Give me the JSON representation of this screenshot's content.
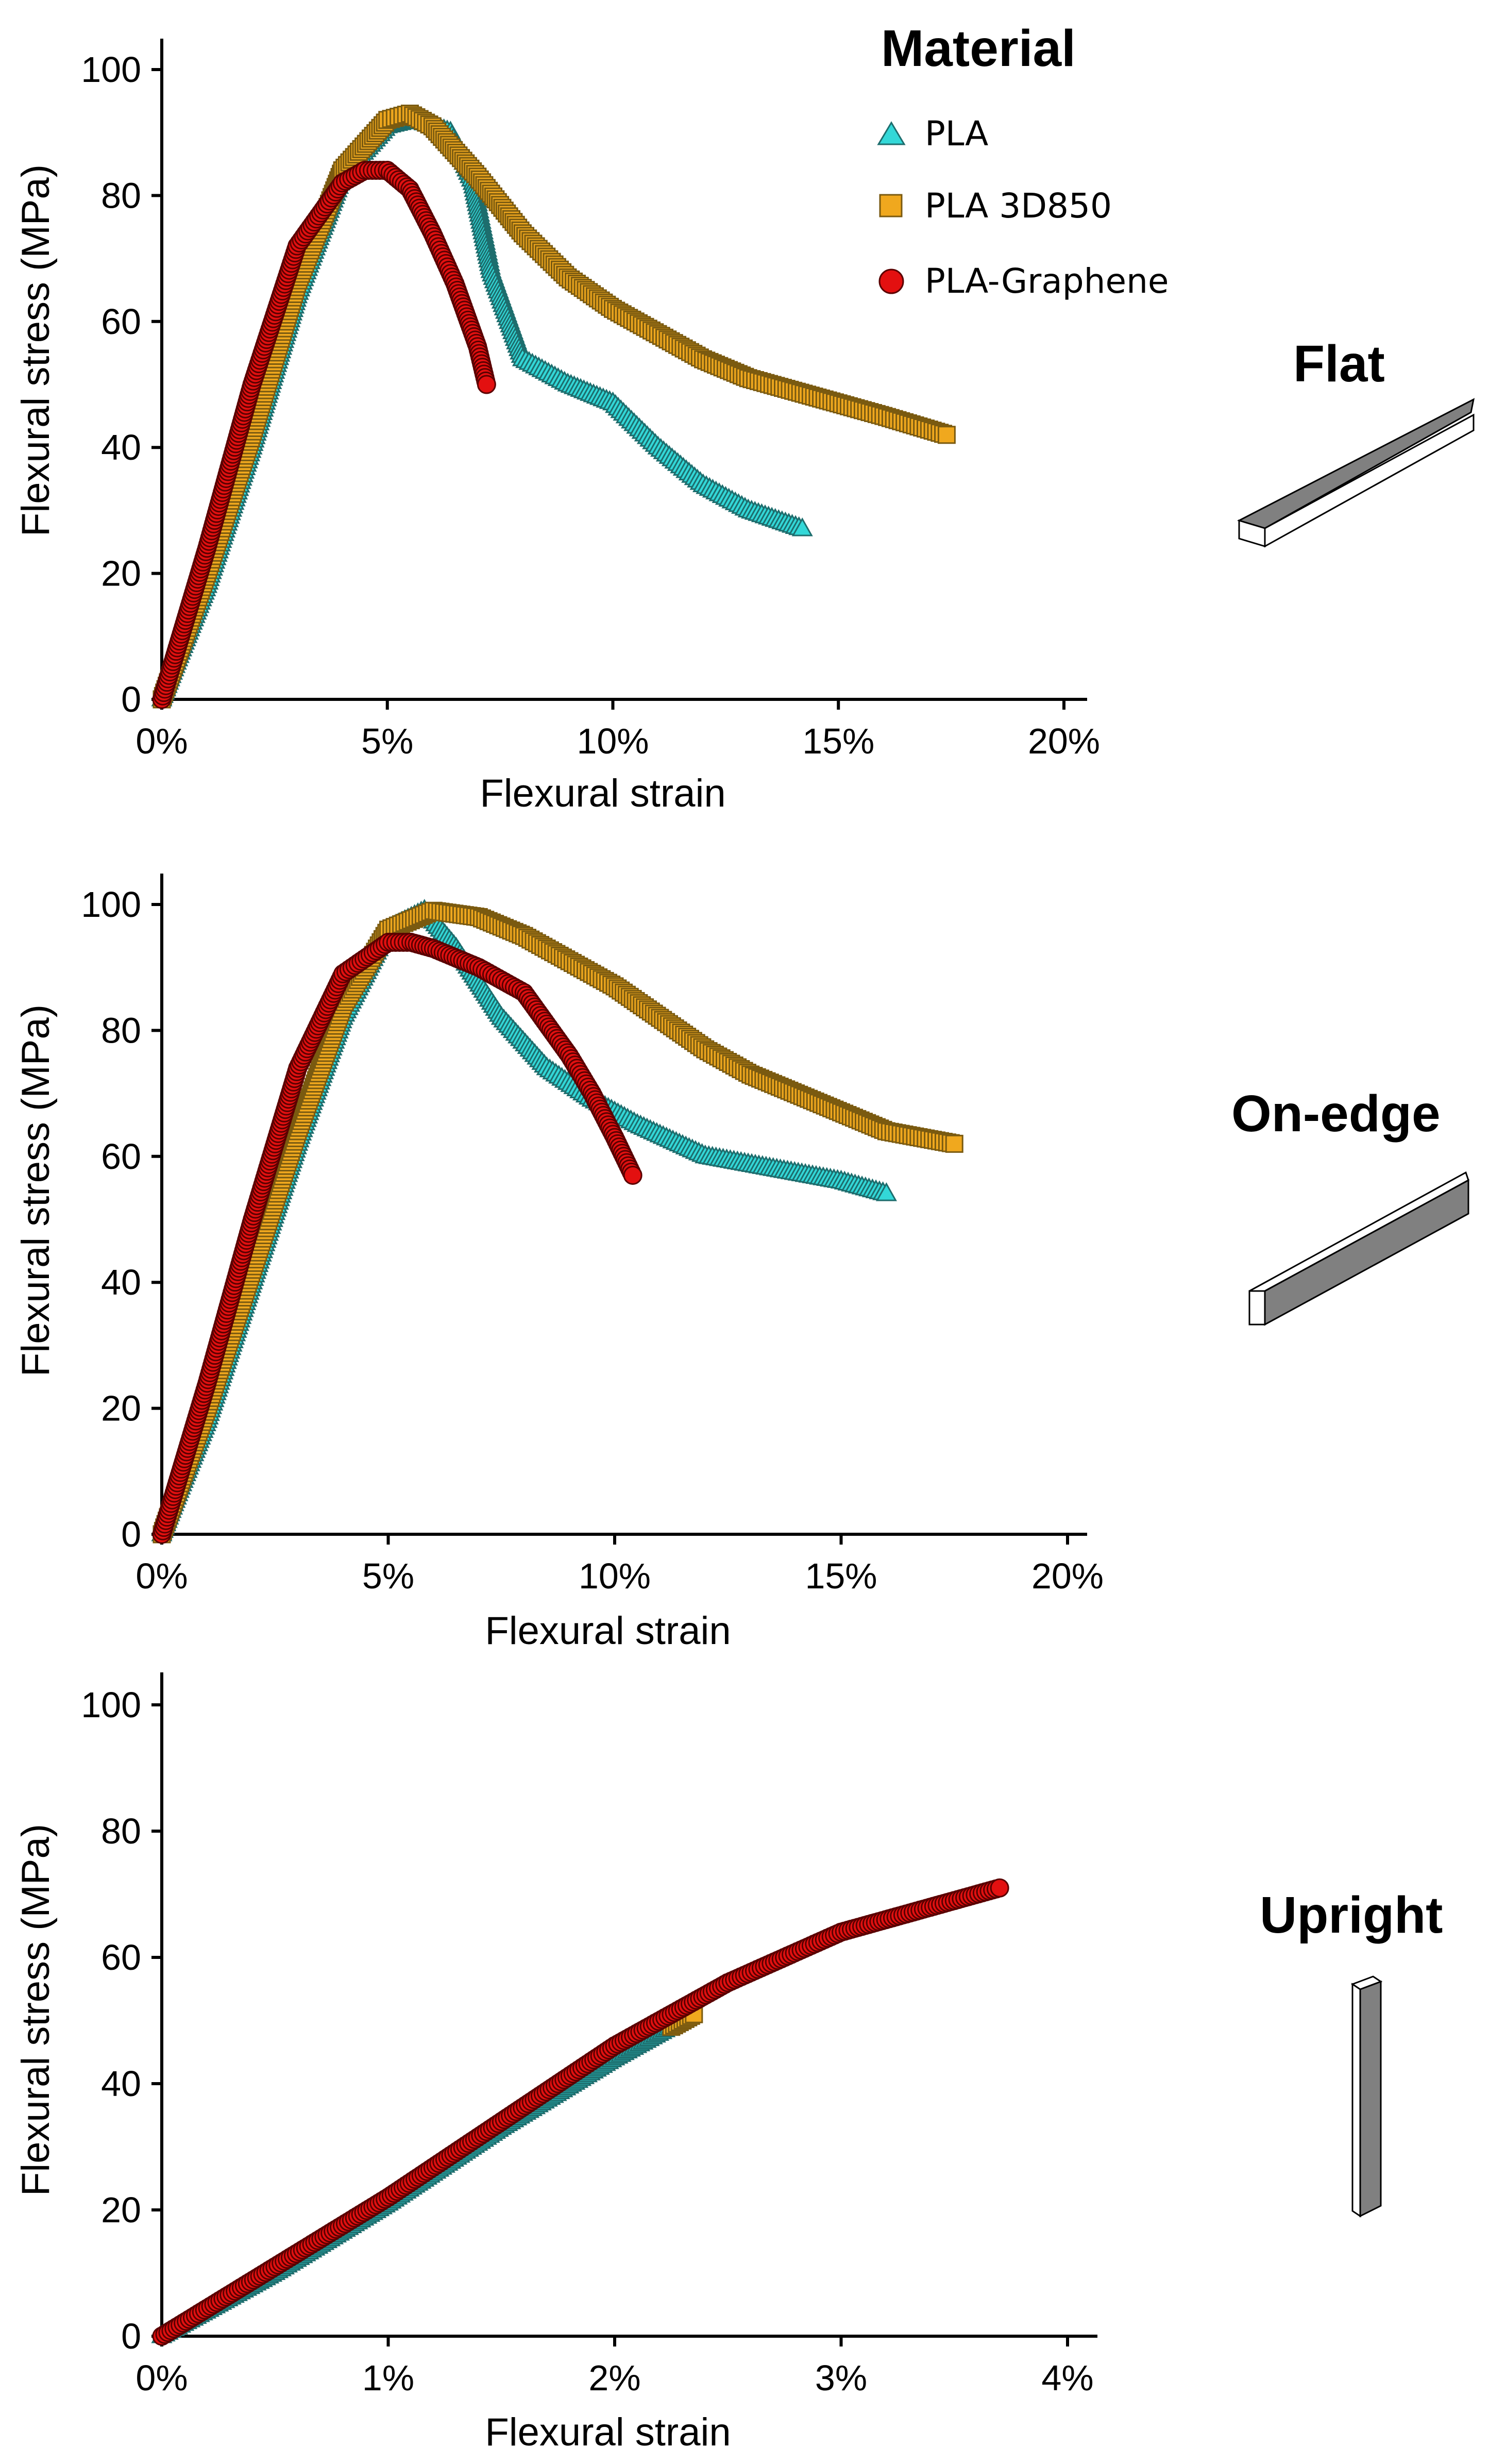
{
  "legend": {
    "title": "Material",
    "entries": [
      {
        "name": "PLA",
        "color": "#33d8d8",
        "marker": "triangle"
      },
      {
        "name": "PLA 3D850",
        "color": "#f0a81e",
        "marker": "square"
      },
      {
        "name": "PLA-Graphene",
        "color": "#e31010",
        "marker": "circle"
      }
    ]
  },
  "chart_data": [
    {
      "type": "scatter",
      "panel_title": "Flat",
      "xlabel": "Flexural strain",
      "ylabel": "Flexural stress (MPa)",
      "xlim": [
        0,
        20
      ],
      "ylim": [
        0,
        100
      ],
      "xticks": [
        0,
        5,
        10,
        15,
        20
      ],
      "xtick_labels": [
        "0%",
        "5%",
        "10%",
        "15%",
        "20%"
      ],
      "yticks": [
        0,
        20,
        40,
        60,
        80,
        100
      ],
      "ytick_labels": [
        "0",
        "20",
        "40",
        "60",
        "80",
        "100"
      ],
      "grid": false,
      "legend_position": "top-right",
      "series": [
        {
          "name": "PLA",
          "x": [
            0,
            1,
            2,
            3,
            4,
            5,
            5.6,
            6.4,
            6.9,
            7.3,
            8,
            9,
            10,
            11,
            12,
            13,
            14.2
          ],
          "y": [
            0,
            18,
            40,
            64,
            83,
            91,
            92,
            90,
            82,
            68,
            54,
            50,
            47,
            40,
            34,
            30,
            27
          ]
        },
        {
          "name": "PLA 3D850",
          "x": [
            0,
            1,
            2,
            3,
            4,
            5,
            5.5,
            6,
            7,
            8,
            9,
            10,
            11,
            12,
            13,
            14,
            15,
            16,
            17.4
          ],
          "y": [
            0,
            20,
            42,
            66,
            84,
            92,
            93,
            91,
            83,
            74,
            67,
            62,
            58,
            54,
            51,
            49,
            47,
            45,
            42
          ]
        },
        {
          "name": "PLA-Graphene",
          "x": [
            0,
            1,
            2,
            3,
            4,
            4.5,
            5,
            5.5,
            6,
            6.5,
            7,
            7.2
          ],
          "y": [
            0,
            24,
            50,
            72,
            82,
            84,
            84,
            81,
            74,
            66,
            56,
            50
          ]
        }
      ]
    },
    {
      "type": "scatter",
      "panel_title": "On-edge",
      "xlabel": "Flexural strain",
      "ylabel": "Flexural stress (MPa)",
      "xlim": [
        0,
        20
      ],
      "ylim": [
        0,
        100
      ],
      "xticks": [
        0,
        5,
        10,
        15,
        20
      ],
      "xtick_labels": [
        "0%",
        "5%",
        "10%",
        "15%",
        "20%"
      ],
      "yticks": [
        0,
        20,
        40,
        60,
        80,
        100
      ],
      "ytick_labels": [
        "0",
        "20",
        "40",
        "60",
        "80",
        "100"
      ],
      "grid": false,
      "series": [
        {
          "name": "PLA",
          "x": [
            0,
            1,
            2,
            3,
            4,
            5,
            5.8,
            6.5,
            7.5,
            8.5,
            9.5,
            10.5,
            12,
            13.5,
            15,
            16
          ],
          "y": [
            0,
            18,
            40,
            62,
            82,
            96,
            99,
            93,
            82,
            74,
            69,
            65,
            60,
            58,
            56,
            54
          ]
        },
        {
          "name": "PLA 3D850",
          "x": [
            0,
            1,
            2,
            3,
            4,
            5,
            6,
            7,
            8,
            9,
            10,
            11,
            12,
            13,
            14,
            15,
            16,
            17.5
          ],
          "y": [
            0,
            20,
            42,
            64,
            84,
            96,
            99,
            98,
            95,
            91,
            87,
            82,
            77,
            73,
            70,
            67,
            64,
            62
          ]
        },
        {
          "name": "PLA-Graphene",
          "x": [
            0,
            1,
            2,
            3,
            4,
            5,
            5.5,
            6,
            7,
            8,
            9,
            9.5,
            10,
            10.4
          ],
          "y": [
            0,
            24,
            50,
            74,
            89,
            94,
            94,
            93,
            90,
            86,
            76,
            70,
            63,
            57
          ]
        }
      ]
    },
    {
      "type": "scatter",
      "panel_title": "Upright",
      "xlabel": "Flexural strain",
      "ylabel": "Flexural stress (MPa)",
      "xlim": [
        0,
        4
      ],
      "ylim": [
        0,
        100
      ],
      "xticks": [
        0,
        1,
        2,
        3,
        4
      ],
      "xtick_labels": [
        "0%",
        "1%",
        "2%",
        "3%",
        "4%"
      ],
      "yticks": [
        0,
        20,
        40,
        60,
        80,
        100
      ],
      "ytick_labels": [
        "0",
        "20",
        "40",
        "60",
        "80",
        "100"
      ],
      "grid": false,
      "series": [
        {
          "name": "PLA",
          "x": [
            0,
            0.5,
            1,
            1.5,
            2,
            2.25
          ],
          "y": [
            0,
            10,
            21,
            33,
            44,
            49
          ]
        },
        {
          "name": "PLA 3D850",
          "x": [
            2.25,
            2.3,
            2.35
          ],
          "y": [
            49,
            50,
            51
          ]
        },
        {
          "name": "PLA-Graphene",
          "x": [
            0,
            0.5,
            1,
            1.5,
            2,
            2.5,
            3,
            3.5,
            3.7
          ],
          "y": [
            0,
            11,
            22,
            34,
            46,
            56,
            64,
            69,
            71
          ]
        }
      ]
    }
  ]
}
